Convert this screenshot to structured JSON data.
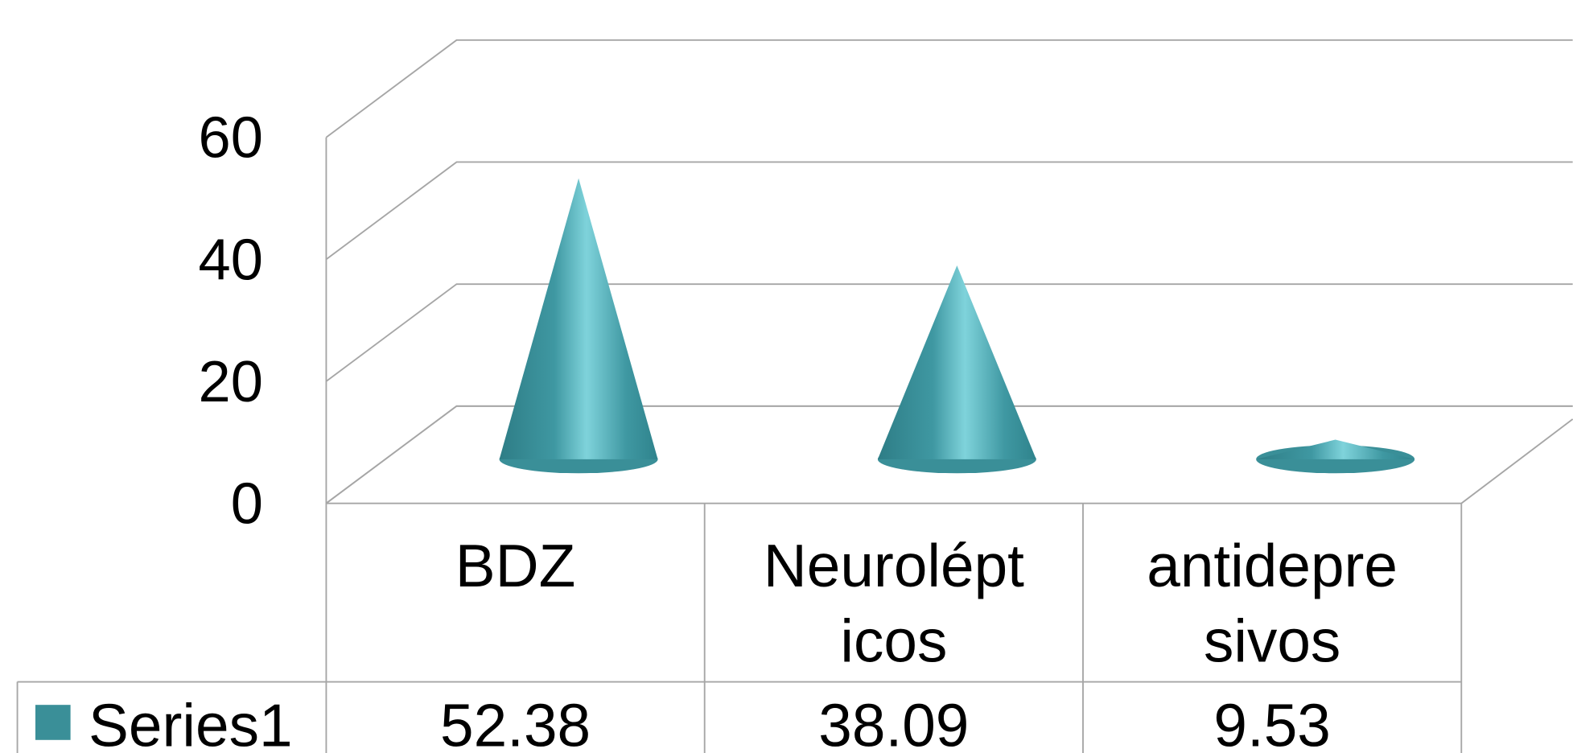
{
  "chart_data": {
    "type": "cone",
    "categories": [
      "BDZ",
      "Neurolépticos",
      "antidepresivos"
    ],
    "series": [
      {
        "name": "Series1",
        "color": "#3a8f98",
        "values": [
          52.38,
          38.09,
          9.53
        ]
      }
    ],
    "ylim": [
      0,
      60
    ],
    "yticks": [
      0,
      20,
      40,
      60
    ],
    "grid": true,
    "data_table": true
  }
}
